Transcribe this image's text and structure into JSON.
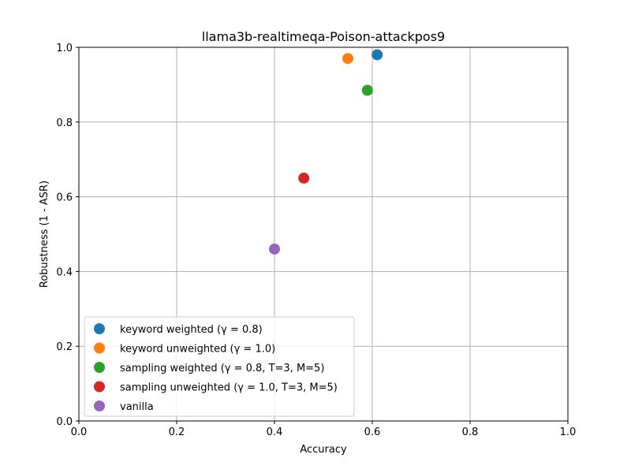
{
  "chart_data": {
    "type": "scatter",
    "title": "llama3b-realtimeqa-Poison-attackpos9",
    "xlabel": "Accuracy",
    "ylabel": "Robustness (1 - ASR)",
    "xlim": [
      0.0,
      1.0
    ],
    "ylim": [
      0.0,
      1.0
    ],
    "xticks": [
      "0.0",
      "0.2",
      "0.4",
      "0.6",
      "0.8",
      "1.0"
    ],
    "yticks": [
      "0.0",
      "0.2",
      "0.4",
      "0.6",
      "0.8",
      "1.0"
    ],
    "grid": true,
    "legend_position": "lower-left",
    "series": [
      {
        "name": "keyword weighted (γ = 0.8)",
        "color": "#1f77b4",
        "x": 0.61,
        "y": 0.98
      },
      {
        "name": "keyword unweighted (γ = 1.0)",
        "color": "#ff7f0e",
        "x": 0.55,
        "y": 0.97
      },
      {
        "name": "sampling weighted (γ = 0.8, T=3, M=5)",
        "color": "#2ca02c",
        "x": 0.59,
        "y": 0.885
      },
      {
        "name": "sampling unweighted (γ = 1.0, T=3, M=5)",
        "color": "#d62728",
        "x": 0.46,
        "y": 0.65
      },
      {
        "name": "vanilla",
        "color": "#9467bd",
        "x": 0.4,
        "y": 0.46
      }
    ]
  }
}
